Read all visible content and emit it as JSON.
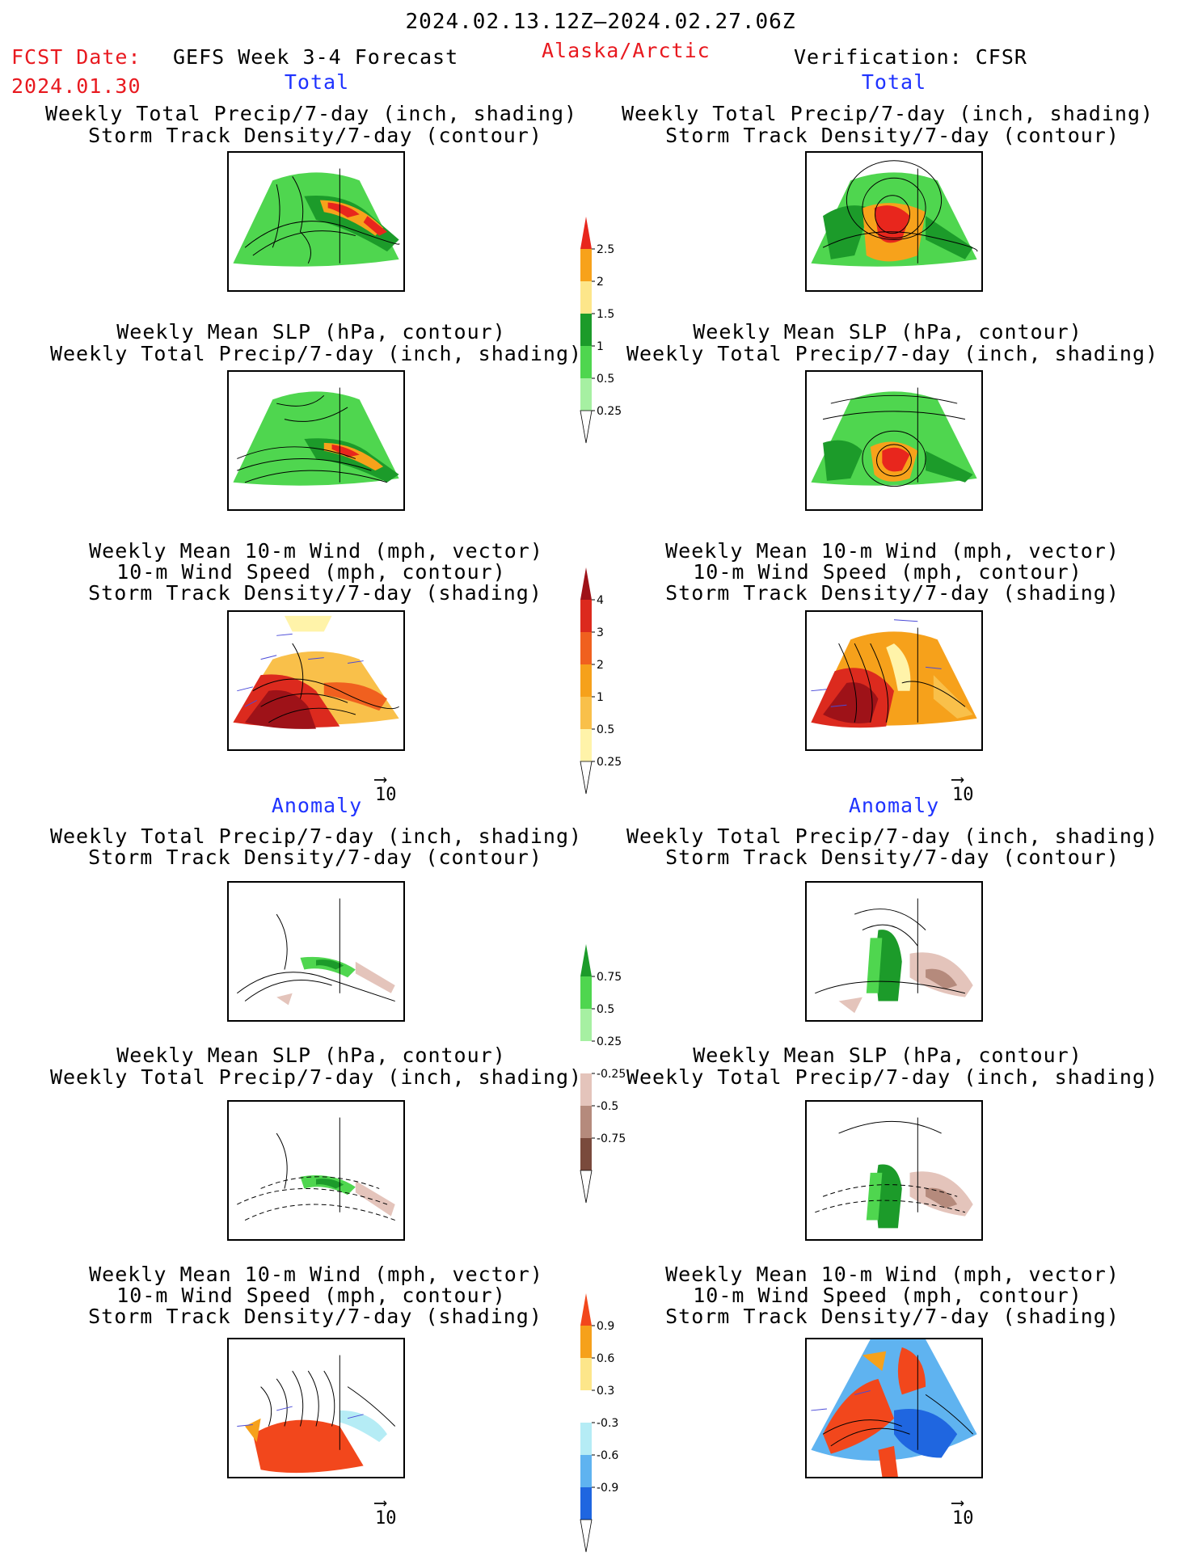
{
  "header": {
    "period": "2024.02.13.12Z–2024.02.27.06Z",
    "fcst_label": "FCST Date:",
    "fcst_date": "2024.01.30",
    "product": "GEFS Week 3-4 Forecast",
    "region": "Alaska/Arctic",
    "verification": "Verification: CFSR"
  },
  "sections": {
    "total": "Total",
    "anomaly": "Anomaly"
  },
  "titles": {
    "precip_storm": [
      "Weekly Total Precip/7-day (inch, shading)",
      "Storm Track Density/7-day (contour)"
    ],
    "slp_precip": [
      "Weekly Mean SLP (hPa, contour)",
      "Weekly Total Precip/7-day (inch, shading)"
    ],
    "wind": [
      "Weekly Mean 10-m Wind (mph, vector)",
      "10-m Wind Speed (mph, contour)",
      "Storm Track Density/7-day (shading)"
    ]
  },
  "wind_ref_vector": "10",
  "colorbars": [
    {
      "name": "total-precip",
      "ticks": [
        "2.5",
        "2",
        "1.5",
        "1",
        "0.5",
        "0.25"
      ],
      "colors": [
        "#e8261d",
        "#f7a21b",
        "#fde68a",
        "#1c9b2a",
        "#4fd64f",
        "#a6f0a2"
      ]
    },
    {
      "name": "total-storm-density",
      "ticks": [
        "4",
        "3",
        "2",
        "1",
        "0.5",
        "0.25"
      ],
      "colors": [
        "#9e1218",
        "#dc2a1e",
        "#f0601f",
        "#f6a11b",
        "#f9c04a",
        "#fff3a9"
      ]
    },
    {
      "name": "anomaly-precip",
      "ticks": [
        "0.75",
        "0.5",
        "0.25",
        "-0.25",
        "-0.5",
        "-0.75"
      ],
      "colors": [
        "#1c9b2a",
        "#4fd64f",
        "#a6f0a2",
        "#ffffff",
        "#e4c4bb",
        "#b58a7c",
        "#7a4a3c"
      ]
    },
    {
      "name": "anomaly-storm-density",
      "ticks": [
        "0.9",
        "0.6",
        "0.3",
        "-0.3",
        "-0.6",
        "-0.9"
      ],
      "colors": [
        "#f2471c",
        "#f6a11b",
        "#fde68a",
        "#ffffff",
        "#b5ecf5",
        "#5fb3f0",
        "#1f66e0"
      ]
    }
  ]
}
